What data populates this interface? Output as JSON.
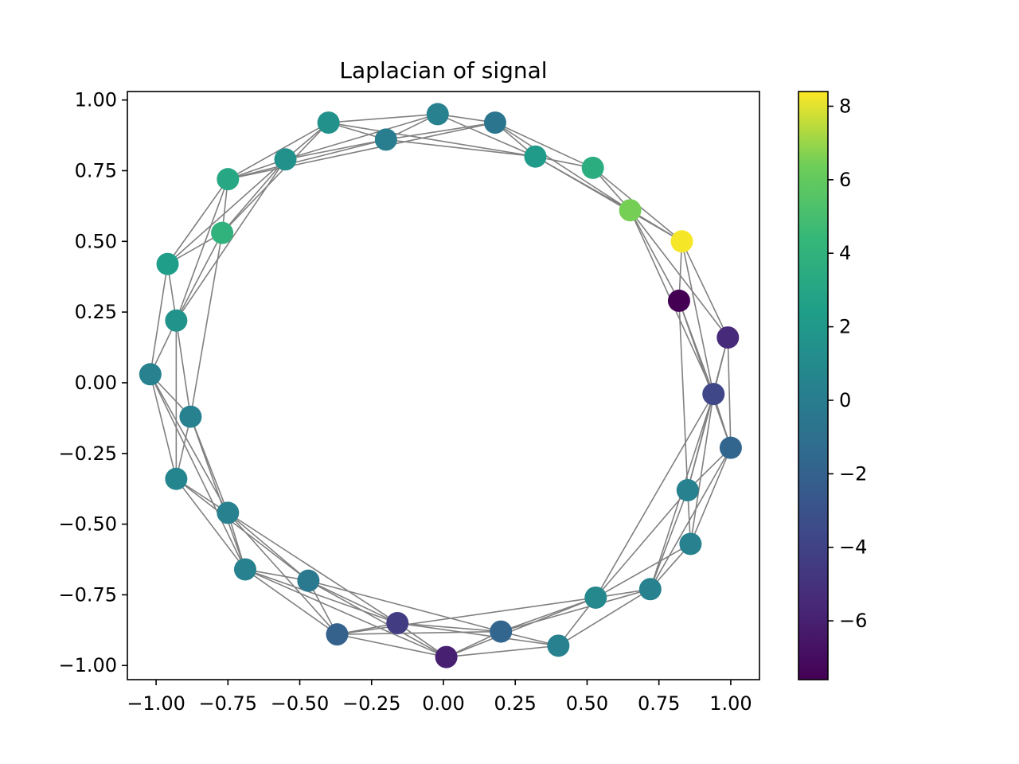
{
  "chart_data": {
    "type": "scatter",
    "subtype": "graph",
    "title": "Laplacian of signal",
    "xlabel": "",
    "ylabel": "",
    "xlim": [
      -1.1,
      1.1
    ],
    "ylim": [
      -1.05,
      1.03
    ],
    "x_ticks": [
      -1.0,
      -0.75,
      -0.5,
      -0.25,
      0.0,
      0.25,
      0.5,
      0.75,
      1.0
    ],
    "x_tick_labels": [
      "−1.00",
      "−0.75",
      "−0.50",
      "−0.25",
      "0.00",
      "0.25",
      "0.50",
      "0.75",
      "1.00"
    ],
    "y_ticks": [
      1.0,
      0.75,
      0.5,
      0.25,
      0.0,
      -0.25,
      -0.5,
      -0.75,
      -1.0
    ],
    "y_tick_labels": [
      "1.00",
      "0.75",
      "0.50",
      "0.25",
      "0.00",
      "−0.25",
      "−0.50",
      "−0.75",
      "−1.00"
    ],
    "grid": false,
    "edge_color": "#808080",
    "colormap": "viridis",
    "colorbar": {
      "range": [
        -7.6,
        8.4
      ],
      "ticks": [
        8,
        6,
        4,
        2,
        0,
        -2,
        -4,
        -6
      ],
      "tick_labels": [
        "8",
        "6",
        "4",
        "2",
        "0",
        "−2",
        "−4",
        "−6"
      ]
    },
    "nodes": [
      {
        "x": -0.02,
        "y": 0.95,
        "value": 0.3
      },
      {
        "x": 0.18,
        "y": 0.92,
        "value": -0.5
      },
      {
        "x": 0.32,
        "y": 0.8,
        "value": 2.2
      },
      {
        "x": 0.52,
        "y": 0.76,
        "value": 3.6
      },
      {
        "x": 0.65,
        "y": 0.61,
        "value": 6.5
      },
      {
        "x": 0.83,
        "y": 0.5,
        "value": 8.3
      },
      {
        "x": 0.82,
        "y": 0.29,
        "value": -7.6
      },
      {
        "x": 0.99,
        "y": 0.16,
        "value": -5.4
      },
      {
        "x": 0.94,
        "y": -0.04,
        "value": -3.7
      },
      {
        "x": 1.0,
        "y": -0.23,
        "value": -1.7
      },
      {
        "x": 0.85,
        "y": -0.38,
        "value": 0.3
      },
      {
        "x": 0.86,
        "y": -0.57,
        "value": 0.3
      },
      {
        "x": 0.72,
        "y": -0.73,
        "value": 0.3
      },
      {
        "x": 0.53,
        "y": -0.76,
        "value": 0.8
      },
      {
        "x": 0.4,
        "y": -0.93,
        "value": 0.3
      },
      {
        "x": 0.2,
        "y": -0.88,
        "value": -1.7
      },
      {
        "x": 0.01,
        "y": -0.97,
        "value": -6.0
      },
      {
        "x": -0.16,
        "y": -0.85,
        "value": -4.4
      },
      {
        "x": -0.37,
        "y": -0.89,
        "value": -2.0
      },
      {
        "x": -0.47,
        "y": -0.7,
        "value": -0.3
      },
      {
        "x": -0.69,
        "y": -0.66,
        "value": 0.3
      },
      {
        "x": -0.75,
        "y": -0.46,
        "value": 0.3
      },
      {
        "x": -0.93,
        "y": -0.34,
        "value": 0.6
      },
      {
        "x": -0.88,
        "y": -0.12,
        "value": 0.3
      },
      {
        "x": -1.02,
        "y": 0.03,
        "value": 0.3
      },
      {
        "x": -0.93,
        "y": 0.22,
        "value": 1.6
      },
      {
        "x": -0.96,
        "y": 0.42,
        "value": 2.4
      },
      {
        "x": -0.77,
        "y": 0.53,
        "value": 4.0
      },
      {
        "x": -0.75,
        "y": 0.72,
        "value": 3.1
      },
      {
        "x": -0.55,
        "y": 0.79,
        "value": 1.5
      },
      {
        "x": -0.4,
        "y": 0.92,
        "value": 1.5
      },
      {
        "x": -0.2,
        "y": 0.86,
        "value": 0.1
      }
    ],
    "edges": [
      [
        0,
        1
      ],
      [
        0,
        2
      ],
      [
        0,
        30
      ],
      [
        0,
        31
      ],
      [
        0,
        29
      ],
      [
        1,
        2
      ],
      [
        1,
        3
      ],
      [
        1,
        4
      ],
      [
        1,
        31
      ],
      [
        1,
        28
      ],
      [
        2,
        3
      ],
      [
        2,
        4
      ],
      [
        2,
        5
      ],
      [
        2,
        31
      ],
      [
        2,
        30
      ],
      [
        3,
        4
      ],
      [
        3,
        5
      ],
      [
        4,
        5
      ],
      [
        4,
        6
      ],
      [
        4,
        7
      ],
      [
        4,
        8
      ],
      [
        5,
        6
      ],
      [
        5,
        7
      ],
      [
        5,
        8
      ],
      [
        6,
        8
      ],
      [
        6,
        9
      ],
      [
        6,
        10
      ],
      [
        7,
        8
      ],
      [
        7,
        9
      ],
      [
        7,
        10
      ],
      [
        8,
        9
      ],
      [
        8,
        10
      ],
      [
        8,
        11
      ],
      [
        8,
        12
      ],
      [
        8,
        13
      ],
      [
        9,
        10
      ],
      [
        9,
        11
      ],
      [
        9,
        12
      ],
      [
        10,
        11
      ],
      [
        10,
        12
      ],
      [
        10,
        13
      ],
      [
        11,
        12
      ],
      [
        11,
        13
      ],
      [
        12,
        13
      ],
      [
        12,
        14
      ],
      [
        12,
        15
      ],
      [
        13,
        14
      ],
      [
        13,
        15
      ],
      [
        13,
        16
      ],
      [
        13,
        18
      ],
      [
        14,
        15
      ],
      [
        14,
        16
      ],
      [
        14,
        17
      ],
      [
        15,
        16
      ],
      [
        15,
        17
      ],
      [
        15,
        18
      ],
      [
        15,
        19
      ],
      [
        16,
        17
      ],
      [
        16,
        18
      ],
      [
        16,
        19
      ],
      [
        16,
        20
      ],
      [
        17,
        18
      ],
      [
        17,
        19
      ],
      [
        17,
        20
      ],
      [
        17,
        21
      ],
      [
        18,
        19
      ],
      [
        18,
        20
      ],
      [
        18,
        21
      ],
      [
        19,
        20
      ],
      [
        19,
        21
      ],
      [
        19,
        22
      ],
      [
        20,
        21
      ],
      [
        20,
        22
      ],
      [
        20,
        23
      ],
      [
        20,
        24
      ],
      [
        21,
        22
      ],
      [
        21,
        23
      ],
      [
        21,
        24
      ],
      [
        22,
        23
      ],
      [
        22,
        24
      ],
      [
        22,
        25
      ],
      [
        23,
        24
      ],
      [
        23,
        25
      ],
      [
        23,
        27
      ],
      [
        24,
        25
      ],
      [
        24,
        26
      ],
      [
        25,
        26
      ],
      [
        25,
        27
      ],
      [
        25,
        28
      ],
      [
        25,
        29
      ],
      [
        26,
        27
      ],
      [
        26,
        28
      ],
      [
        26,
        29
      ],
      [
        27,
        28
      ],
      [
        27,
        29
      ],
      [
        27,
        30
      ],
      [
        28,
        29
      ],
      [
        28,
        30
      ],
      [
        28,
        31
      ],
      [
        29,
        30
      ],
      [
        29,
        31
      ],
      [
        30,
        31
      ]
    ]
  }
}
